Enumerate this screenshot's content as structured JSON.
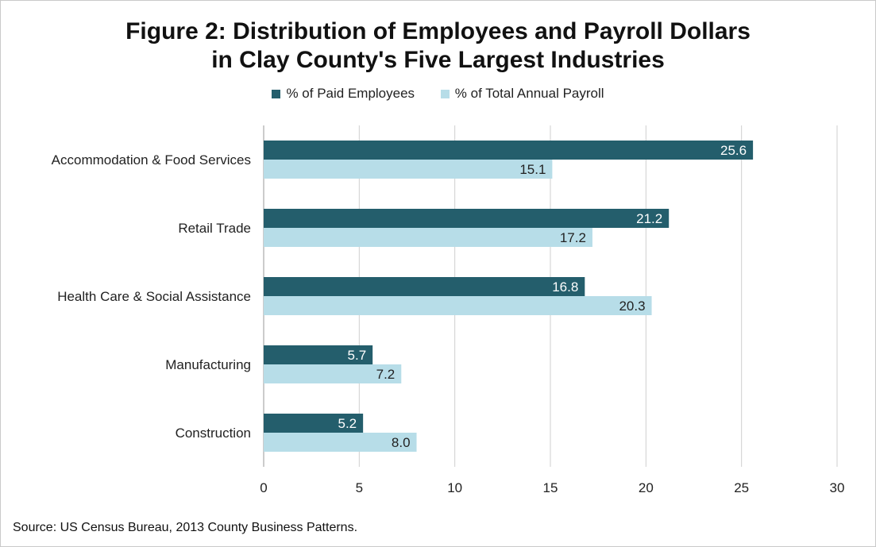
{
  "title_line1": "Figure 2: Distribution of Employees and Payroll Dollars",
  "title_line2": "in Clay County's Five Largest Industries",
  "source": "Source: US Census Bureau, 2013 County Business Patterns.",
  "colors": {
    "employees": "#245e6c",
    "payroll": "#b7dde8",
    "grid": "#cfcfcf"
  },
  "chart_data": {
    "type": "bar",
    "orientation": "horizontal",
    "categories": [
      "Accommodation & Food Services",
      "Retail Trade",
      "Health Care & Social Assistance",
      "Manufacturing",
      "Construction"
    ],
    "series": [
      {
        "name": "% of Paid Employees",
        "values": [
          25.6,
          21.2,
          16.8,
          5.7,
          5.2
        ]
      },
      {
        "name": "% of Total Annual Payroll",
        "values": [
          15.1,
          17.2,
          20.3,
          7.2,
          8.0
        ]
      }
    ],
    "xlim": [
      0,
      30
    ],
    "xticks": [
      0,
      5,
      10,
      15,
      20,
      25,
      30
    ],
    "grid": true,
    "legend_position": "top",
    "value_format_decimals": 1
  }
}
